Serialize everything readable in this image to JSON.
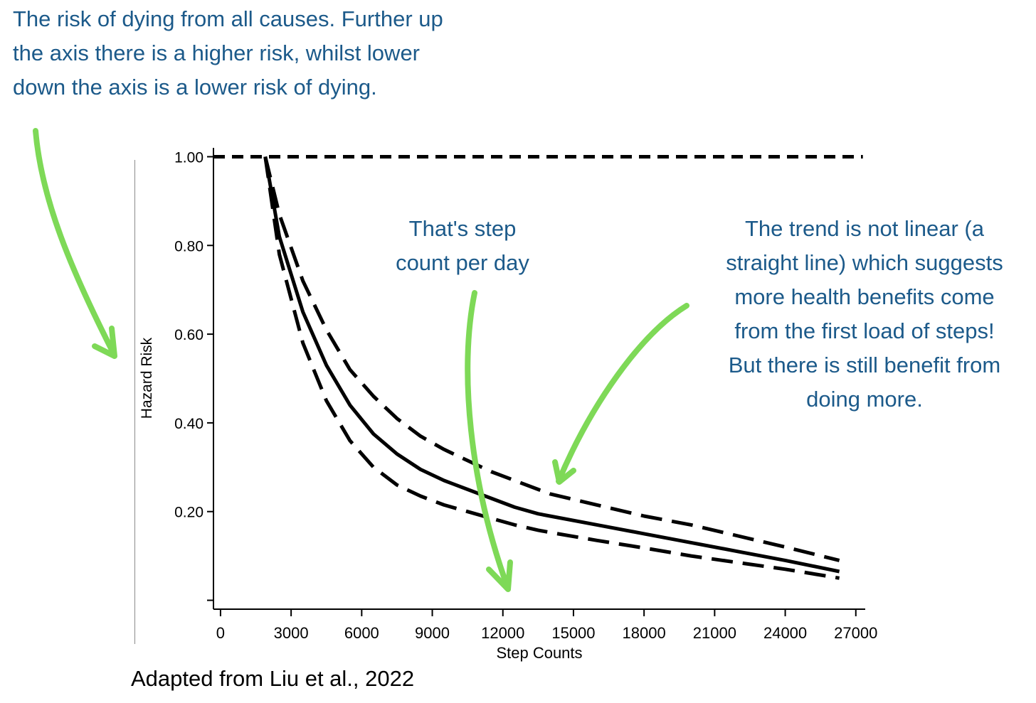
{
  "annotations": {
    "y_axis_note": [
      "The risk of dying from all causes. Further up",
      "the axis there is a higher risk, whilst lower",
      "down the axis is a lower risk of dying."
    ],
    "x_axis_note": [
      "That's step",
      "count per day"
    ],
    "trend_note": [
      "The trend is not linear (a",
      "straight line) which suggests",
      "more health benefits come",
      "from the first load of steps!",
      "But there is still benefit from",
      "doing more."
    ],
    "caption": "Adapted from Liu et al., 2022"
  },
  "colors": {
    "annotation_text": "#1c5a8a",
    "arrow": "#7ed957",
    "lines": "#000000"
  },
  "chart_data": {
    "type": "line",
    "title": "",
    "xlabel": "Step Counts",
    "ylabel": "Hazard Risk",
    "xlim": [
      -300,
      27400
    ],
    "ylim": [
      -0.02,
      1.02
    ],
    "xticks": [
      0,
      3000,
      6000,
      9000,
      12000,
      15000,
      18000,
      21000,
      24000,
      27000
    ],
    "xtick_labels": [
      "0",
      "3000",
      "6000",
      "9000",
      "12000",
      "15000",
      "18000",
      "21000",
      "24000",
      "27000"
    ],
    "yticks": [
      0.0,
      0.2,
      0.4,
      0.6,
      0.8,
      1.0
    ],
    "ytick_labels": [
      "",
      "0.20",
      "0.40",
      "0.60",
      "0.80",
      "1.00"
    ],
    "grid": false,
    "reference_line": {
      "y": 1.0,
      "x_range": [
        -300,
        27300
      ],
      "style": "dashed"
    },
    "series": [
      {
        "style": "dashed",
        "x": [
          1900,
          2500,
          3500,
          4500,
          5500,
          6500,
          7500,
          8500,
          9500,
          10500,
          11500,
          12500,
          13500,
          14000,
          16000,
          18000,
          20000,
          22000,
          24000,
          26300
        ],
        "y": [
          1.0,
          0.87,
          0.72,
          0.61,
          0.52,
          0.46,
          0.41,
          0.37,
          0.34,
          0.315,
          0.29,
          0.27,
          0.25,
          0.24,
          0.215,
          0.19,
          0.17,
          0.145,
          0.12,
          0.09
        ]
      },
      {
        "style": "solid",
        "x": [
          1900,
          2500,
          3500,
          4500,
          5500,
          6500,
          7500,
          8500,
          9500,
          10500,
          11500,
          12500,
          13500,
          14000,
          16000,
          18000,
          20000,
          22000,
          24000,
          26300
        ],
        "y": [
          1.0,
          0.82,
          0.65,
          0.53,
          0.44,
          0.375,
          0.33,
          0.295,
          0.27,
          0.25,
          0.23,
          0.21,
          0.195,
          0.19,
          0.17,
          0.15,
          0.13,
          0.11,
          0.09,
          0.065
        ]
      },
      {
        "style": "dashed",
        "x": [
          1900,
          2500,
          3500,
          4500,
          5500,
          6500,
          7500,
          8500,
          9500,
          10500,
          11500,
          12500,
          13500,
          14000,
          16000,
          18000,
          20000,
          22000,
          24000,
          26300
        ],
        "y": [
          1.0,
          0.78,
          0.58,
          0.45,
          0.36,
          0.3,
          0.26,
          0.235,
          0.215,
          0.2,
          0.185,
          0.17,
          0.158,
          0.153,
          0.135,
          0.118,
          0.1,
          0.085,
          0.07,
          0.05
        ]
      }
    ]
  }
}
